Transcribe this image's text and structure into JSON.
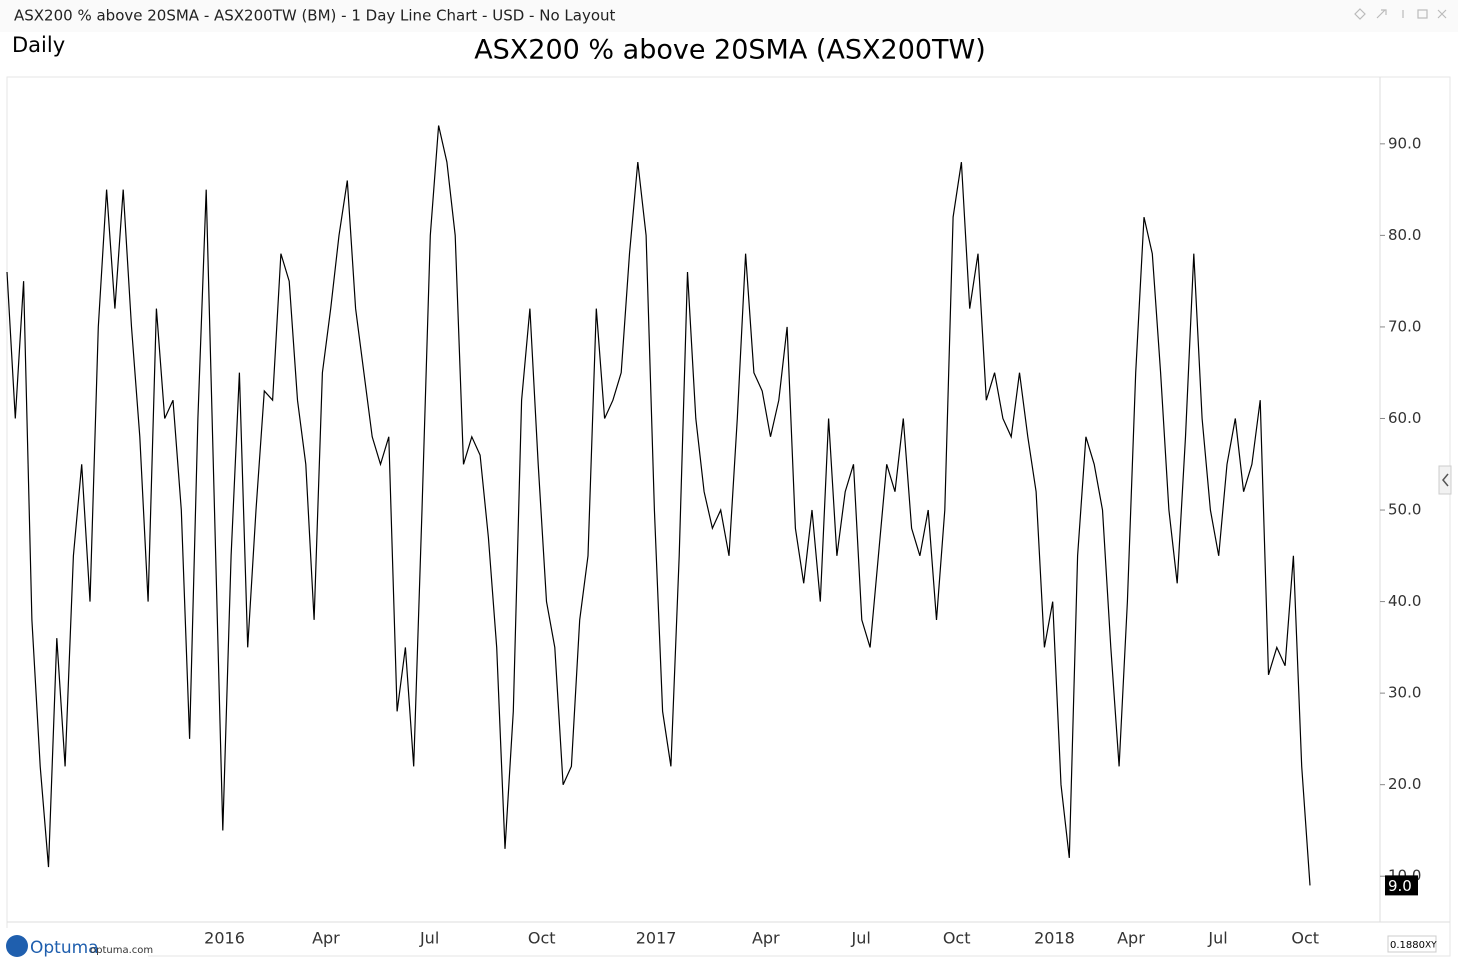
{
  "ui": {
    "window_title": "ASX200 % above 20SMA - ASX200TW (BM) - 1 Day Line Chart - USD - No Layout",
    "period": "Daily",
    "logo": "Optuma",
    "logo_url": "optuma.com",
    "scale_box": "0.1880",
    "scale_mode": "XY"
  },
  "chart_data": {
    "type": "line",
    "title": "ASX200 % above 20SMA (ASX200TW)",
    "color": "#000000",
    "categories": [
      null,
      null,
      null,
      null,
      null,
      null,
      null,
      null,
      null,
      null,
      null,
      null,
      null,
      null,
      null,
      null,
      null,
      null,
      null,
      null,
      null,
      null,
      null,
      null,
      "2016",
      null,
      null,
      null,
      null,
      null,
      null,
      null,
      null,
      null,
      null,
      null,
      null,
      "Apr",
      null,
      null,
      null,
      null,
      null,
      null,
      null,
      null,
      null,
      null,
      null,
      null,
      "Jul",
      null,
      null,
      null,
      null,
      null,
      null,
      null,
      null,
      null,
      null,
      null,
      null,
      "Oct",
      null,
      null,
      null,
      null,
      null,
      null,
      null,
      null,
      null,
      null,
      null,
      null,
      "2017",
      null,
      null,
      null,
      null,
      null,
      null,
      null,
      null,
      null,
      null,
      null,
      null,
      null,
      "Apr",
      null,
      null,
      null,
      null,
      null,
      null,
      null,
      null,
      null,
      null,
      null,
      "Jul",
      null,
      null,
      null,
      null,
      null,
      null,
      null,
      null,
      null,
      null,
      "Oct",
      null,
      null,
      null,
      null,
      null,
      null,
      null,
      null,
      null,
      null,
      "2018",
      null,
      null,
      null,
      null,
      null,
      null,
      null,
      null,
      null,
      "Apr",
      null,
      null,
      null,
      null,
      null,
      null,
      null,
      null,
      null,
      null,
      "Jul",
      null,
      null,
      null,
      null,
      null,
      null,
      null,
      null,
      null,
      "Oct",
      null,
      null
    ],
    "values": [
      76,
      60,
      75,
      38,
      22,
      11,
      36,
      22,
      45,
      55,
      40,
      70,
      85,
      72,
      85,
      70,
      58,
      40,
      72,
      60,
      62,
      50,
      25,
      60,
      85,
      50,
      15,
      45,
      65,
      35,
      50,
      63,
      62,
      78,
      75,
      62,
      55,
      38,
      65,
      72,
      80,
      86,
      72,
      65,
      58,
      55,
      58,
      28,
      35,
      22,
      50,
      80,
      92,
      88,
      80,
      55,
      58,
      56,
      47,
      35,
      13,
      28,
      62,
      72,
      55,
      40,
      35,
      20,
      22,
      38,
      45,
      72,
      60,
      62,
      65,
      78,
      88,
      80,
      50,
      28,
      22,
      45,
      76,
      60,
      52,
      48,
      50,
      45,
      60,
      78,
      65,
      63,
      58,
      62,
      70,
      48,
      42,
      50,
      40,
      60,
      45,
      52,
      55,
      38,
      35,
      45,
      55,
      52,
      60,
      48,
      45,
      50,
      38,
      50,
      82,
      88,
      72,
      78,
      62,
      65,
      60,
      58,
      65,
      58,
      52,
      35,
      40,
      20,
      12,
      45,
      58,
      55,
      50,
      35,
      22,
      40,
      65,
      82,
      78,
      65,
      50,
      42,
      58,
      78,
      60,
      50,
      45,
      55,
      60,
      52,
      55,
      62,
      32,
      35,
      33,
      45,
      22,
      9
    ],
    "value_labels": [
      null,
      null,
      null,
      null,
      null,
      null,
      null,
      null,
      null,
      null,
      null,
      null,
      null,
      null,
      null,
      null,
      null,
      null,
      null,
      null,
      null,
      null,
      null,
      null,
      null,
      null,
      null,
      null,
      null,
      null,
      null,
      null,
      null,
      null,
      null,
      null,
      null,
      null,
      null,
      null,
      null,
      null,
      null,
      null,
      null,
      null,
      null,
      null,
      null,
      null,
      null,
      null,
      null,
      null,
      null,
      null,
      null,
      null,
      null,
      null,
      null,
      null,
      null,
      null,
      null,
      null,
      null,
      null,
      null,
      null,
      null,
      null,
      null,
      null,
      null,
      null,
      null,
      null,
      null,
      null,
      null,
      null,
      null,
      null,
      null,
      null,
      null,
      null,
      null,
      null,
      null,
      null,
      null,
      null,
      null,
      null,
      null,
      null,
      null,
      null,
      null,
      null,
      null,
      null,
      null,
      null,
      null,
      null,
      null,
      null,
      null,
      null,
      null,
      null,
      null,
      null,
      null,
      null,
      null,
      null,
      null,
      null,
      null,
      null,
      null,
      null,
      null,
      null,
      null,
      null,
      null,
      null,
      null,
      null,
      null,
      null,
      null,
      null,
      null,
      null,
      null,
      null,
      null,
      null,
      null,
      null,
      null,
      null,
      null,
      null,
      null,
      null,
      null,
      null,
      null,
      null,
      null,
      "9.0"
    ],
    "ylim": [
      5,
      97.3
    ],
    "yticks": [
      {
        "value": 10,
        "label": "10.0"
      },
      {
        "value": 20,
        "label": "20.0"
      },
      {
        "value": 30,
        "label": "30.0"
      },
      {
        "value": 40,
        "label": "40.0"
      },
      {
        "value": 50,
        "label": "50.0"
      },
      {
        "value": 60,
        "label": "60.0"
      },
      {
        "value": 70,
        "label": "70.0"
      },
      {
        "value": 80,
        "label": "80.0"
      },
      {
        "value": 90,
        "label": "90.0"
      }
    ],
    "grid": false
  }
}
